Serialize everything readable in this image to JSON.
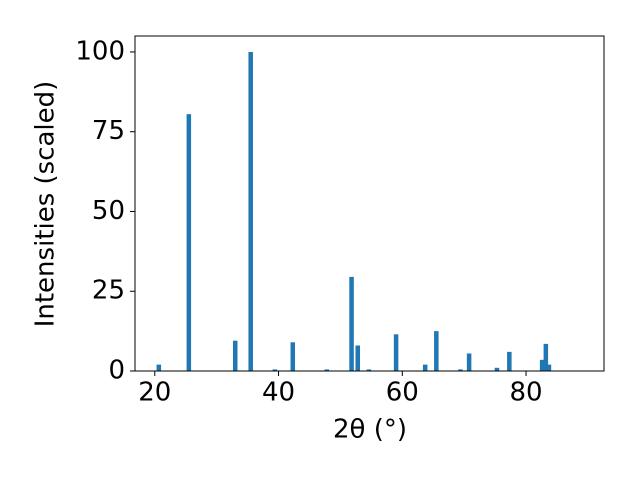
{
  "chart_data": {
    "type": "bar",
    "x_label": "2θ (°)",
    "y_label": "Intensities (scaled)",
    "x": [
      20.65,
      25.5,
      33.0,
      35.5,
      39.4,
      42.3,
      47.8,
      51.8,
      52.8,
      54.6,
      59.0,
      63.7,
      65.5,
      69.4,
      70.8,
      75.3,
      77.3,
      82.6,
      83.2,
      83.7
    ],
    "values": [
      2,
      80.5,
      9.5,
      100,
      0.5,
      9,
      0.5,
      29.5,
      8,
      0.5,
      11.5,
      2,
      12.5,
      0.5,
      5.5,
      1,
      6,
      3.5,
      8.5,
      2
    ],
    "color": "#1f77b4",
    "xlim": [
      16.8,
      92.6
    ],
    "ylim": [
      0,
      105
    ],
    "xticks": [
      20,
      40,
      60,
      80
    ],
    "yticks": [
      0,
      25,
      50,
      75,
      100
    ],
    "grid": false
  }
}
